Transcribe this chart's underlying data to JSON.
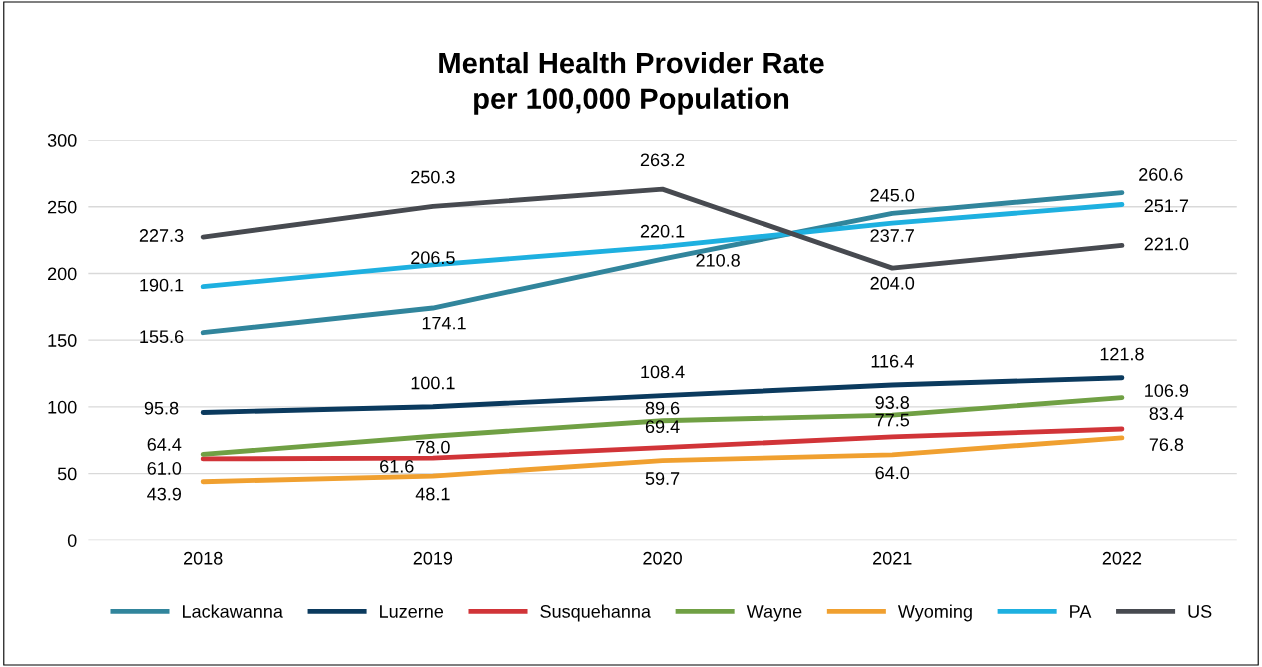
{
  "chart_data": {
    "type": "line",
    "title": "Mental Health Provider Rate\nper 100,000 Population",
    "categories": [
      "2018",
      "2019",
      "2020",
      "2021",
      "2022"
    ],
    "series": [
      {
        "name": "Lackawanna",
        "color": "#31859c",
        "values": [
          155.6,
          174.1,
          210.8,
          245.0,
          260.6
        ],
        "value_labels": [
          "155.6",
          "174.1",
          "210.8",
          "245.0",
          "260.6"
        ]
      },
      {
        "name": "Luzerne",
        "color": "#0b3a5e",
        "values": [
          95.8,
          100.1,
          108.4,
          116.4,
          121.8
        ],
        "value_labels": [
          "95.8",
          "100.1",
          "108.4",
          "116.4",
          "121.8"
        ]
      },
      {
        "name": "Susquehanna",
        "color": "#d13438",
        "values": [
          61.0,
          61.6,
          69.4,
          77.5,
          83.4
        ],
        "value_labels": [
          "61.0",
          "61.6",
          "69.4",
          "77.5",
          "83.4"
        ]
      },
      {
        "name": "Wayne",
        "color": "#70a044",
        "values": [
          64.4,
          78.0,
          89.6,
          93.8,
          106.9
        ],
        "value_labels": [
          "64.4",
          "78.0",
          "89.6",
          "93.8",
          "106.9"
        ]
      },
      {
        "name": "Wyoming",
        "color": "#f0a030",
        "values": [
          43.9,
          48.1,
          59.7,
          64.0,
          76.8
        ],
        "value_labels": [
          "43.9",
          "48.1",
          "59.7",
          "64.0",
          "76.8"
        ]
      },
      {
        "name": "PA",
        "color": "#1eb0e0",
        "values": [
          190.1,
          206.5,
          220.1,
          237.7,
          251.7
        ],
        "value_labels": [
          "190.1",
          "206.5",
          "220.1",
          "237.7",
          "251.7"
        ]
      },
      {
        "name": "US",
        "color": "#474a50",
        "values": [
          227.3,
          250.3,
          263.2,
          204.0,
          221.0
        ],
        "value_labels": [
          "227.3",
          "250.3",
          "263.2",
          "204.0",
          "221.0"
        ]
      }
    ],
    "ylim": [
      0,
      300
    ],
    "yticks": [
      0,
      50,
      100,
      150,
      200,
      250,
      300
    ],
    "grid": "y",
    "legend": "bottom",
    "marker": "none",
    "line_style": "solid"
  }
}
